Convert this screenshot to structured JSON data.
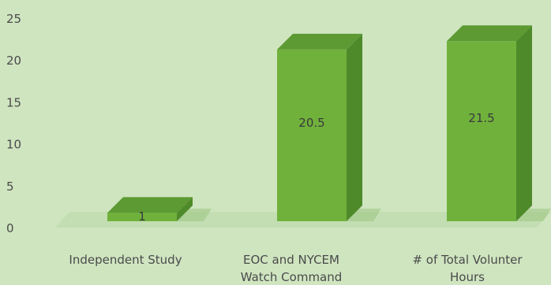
{
  "chart_data": {
    "type": "bar",
    "style": "3d-column",
    "categories": [
      [
        "Independent Study"
      ],
      [
        "EOC and NYCEM",
        "Watch Command"
      ],
      [
        "# of Total Volunter",
        "Hours"
      ]
    ],
    "values": [
      1,
      20.5,
      21.5
    ],
    "data_labels": [
      "1",
      "20.5",
      "21.5"
    ],
    "ylim": [
      0,
      25
    ],
    "yticks": [
      "0",
      "5",
      "10",
      "15",
      "20",
      "25"
    ],
    "grid": false,
    "legend": "none",
    "colors": {
      "background": "#cfe5c0",
      "bar_front": "#70b13c",
      "bar_side": "#4f8a2a",
      "bar_top": "#5e9a33",
      "floor_shadow": "#b8d8a3"
    }
  }
}
